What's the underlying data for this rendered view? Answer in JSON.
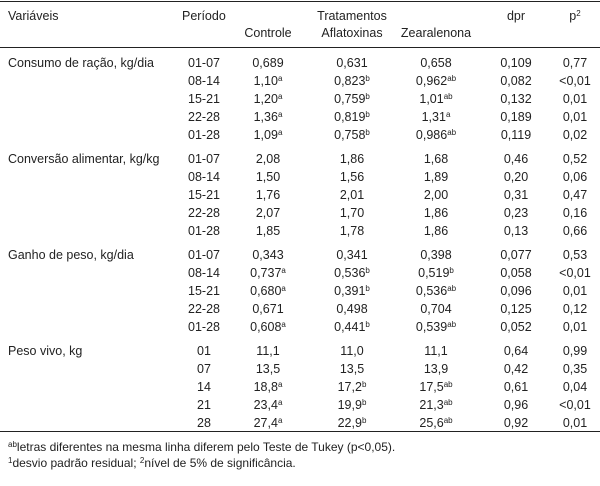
{
  "header": {
    "variaveis": "Variáveis",
    "periodo": "Período",
    "tratamentos": "Tratamentos",
    "controle": "Controle",
    "aflatoxinas": "Aflatoxinas",
    "zearalenona": "Zearalenona",
    "dpr": "dpr",
    "p": "p",
    "p_sup": "2"
  },
  "groups": [
    {
      "label": "Consumo de ração, kg/dia",
      "rows": [
        {
          "periodo": "01-07",
          "controle": "0,689",
          "controle_sup": "",
          "aflatoxinas": "0,631",
          "aflatoxinas_sup": "",
          "zearalenona": "0,658",
          "zearalenona_sup": "",
          "dpr": "0,109",
          "p": "0,77"
        },
        {
          "periodo": "08-14",
          "controle": "1,10",
          "controle_sup": "a",
          "aflatoxinas": "0,823",
          "aflatoxinas_sup": "b",
          "zearalenona": "0,962",
          "zearalenona_sup": "ab",
          "dpr": "0,082",
          "p": "<0,01"
        },
        {
          "periodo": "15-21",
          "controle": "1,20",
          "controle_sup": "a",
          "aflatoxinas": "0,759",
          "aflatoxinas_sup": "b",
          "zearalenona": "1,01",
          "zearalenona_sup": "ab",
          "dpr": "0,132",
          "p": "0,01"
        },
        {
          "periodo": "22-28",
          "controle": "1,36",
          "controle_sup": "a",
          "aflatoxinas": "0,819",
          "aflatoxinas_sup": "b",
          "zearalenona": "1,31",
          "zearalenona_sup": "a",
          "dpr": "0,189",
          "p": "0,01"
        },
        {
          "periodo": "01-28",
          "controle": "1,09",
          "controle_sup": "a",
          "aflatoxinas": "0,758",
          "aflatoxinas_sup": "b",
          "zearalenona": "0,986",
          "zearalenona_sup": "ab",
          "dpr": "0,119",
          "p": "0,02"
        }
      ]
    },
    {
      "label": "Conversão alimentar, kg/kg",
      "rows": [
        {
          "periodo": "01-07",
          "controle": "2,08",
          "controle_sup": "",
          "aflatoxinas": "1,86",
          "aflatoxinas_sup": "",
          "zearalenona": "1,68",
          "zearalenona_sup": "",
          "dpr": "0,46",
          "p": "0,52"
        },
        {
          "periodo": "08-14",
          "controle": "1,50",
          "controle_sup": "",
          "aflatoxinas": "1,56",
          "aflatoxinas_sup": "",
          "zearalenona": "1,89",
          "zearalenona_sup": "",
          "dpr": "0,20",
          "p": "0,06"
        },
        {
          "periodo": "15-21",
          "controle": "1,76",
          "controle_sup": "",
          "aflatoxinas": "2,01",
          "aflatoxinas_sup": "",
          "zearalenona": "2,00",
          "zearalenona_sup": "",
          "dpr": "0,31",
          "p": "0,47"
        },
        {
          "periodo": "22-28",
          "controle": "2,07",
          "controle_sup": "",
          "aflatoxinas": "1,70",
          "aflatoxinas_sup": "",
          "zearalenona": "1,86",
          "zearalenona_sup": "",
          "dpr": "0,23",
          "p": "0,16"
        },
        {
          "periodo": "01-28",
          "controle": "1,85",
          "controle_sup": "",
          "aflatoxinas": "1,78",
          "aflatoxinas_sup": "",
          "zearalenona": "1,86",
          "zearalenona_sup": "",
          "dpr": "0,13",
          "p": "0,66"
        }
      ]
    },
    {
      "label": "Ganho de peso, kg/dia",
      "rows": [
        {
          "periodo": "01-07",
          "controle": "0,343",
          "controle_sup": "",
          "aflatoxinas": "0,341",
          "aflatoxinas_sup": "",
          "zearalenona": "0,398",
          "zearalenona_sup": "",
          "dpr": "0,077",
          "p": "0,53"
        },
        {
          "periodo": "08-14",
          "controle": "0,737",
          "controle_sup": "a",
          "aflatoxinas": "0,536",
          "aflatoxinas_sup": "b",
          "zearalenona": "0,519",
          "zearalenona_sup": "b",
          "dpr": "0,058",
          "p": "<0,01"
        },
        {
          "periodo": "15-21",
          "controle": "0,680",
          "controle_sup": "a",
          "aflatoxinas": "0,391",
          "aflatoxinas_sup": "b",
          "zearalenona": "0,536",
          "zearalenona_sup": "ab",
          "dpr": "0,096",
          "p": "0,01"
        },
        {
          "periodo": "22-28",
          "controle": "0,671",
          "controle_sup": "",
          "aflatoxinas": "0,498",
          "aflatoxinas_sup": "",
          "zearalenona": "0,704",
          "zearalenona_sup": "",
          "dpr": "0,125",
          "p": "0,12"
        },
        {
          "periodo": "01-28",
          "controle": "0,608",
          "controle_sup": "a",
          "aflatoxinas": "0,441",
          "aflatoxinas_sup": "b",
          "zearalenona": "0,539",
          "zearalenona_sup": "ab",
          "dpr": "0,052",
          "p": "0,01"
        }
      ]
    },
    {
      "label": "Peso vivo, kg",
      "rows": [
        {
          "periodo": "01",
          "controle": "11,1",
          "controle_sup": "",
          "aflatoxinas": "11,0",
          "aflatoxinas_sup": "",
          "zearalenona": "11,1",
          "zearalenona_sup": "",
          "dpr": "0,64",
          "p": "0,99"
        },
        {
          "periodo": "07",
          "controle": "13,5",
          "controle_sup": "",
          "aflatoxinas": "13,5",
          "aflatoxinas_sup": "",
          "zearalenona": "13,9",
          "zearalenona_sup": "",
          "dpr": "0,42",
          "p": "0,35"
        },
        {
          "periodo": "14",
          "controle": "18,8",
          "controle_sup": "a",
          "aflatoxinas": "17,2",
          "aflatoxinas_sup": "b",
          "zearalenona": "17,5",
          "zearalenona_sup": "ab",
          "dpr": "0,61",
          "p": "0,04"
        },
        {
          "periodo": "21",
          "controle": "23,4",
          "controle_sup": "a",
          "aflatoxinas": "19,9",
          "aflatoxinas_sup": "b",
          "zearalenona": "21,3",
          "zearalenona_sup": "ab",
          "dpr": "0,96",
          "p": "<0,01"
        },
        {
          "periodo": "28",
          "controle": "27,4",
          "controle_sup": "a",
          "aflatoxinas": "22,9",
          "aflatoxinas_sup": "b",
          "zearalenona": "25,6",
          "zearalenona_sup": "ab",
          "dpr": "0,92",
          "p": "0,01"
        }
      ]
    }
  ],
  "notes": {
    "note1_sup": "ab",
    "note1_text": "letras diferentes na mesma linha diferem pelo Teste de Tukey (p<0,05).",
    "note2_sup1": "1",
    "note2_text1": "desvio padrão residual; ",
    "note2_sup2": "2",
    "note2_text2": "nível de 5% de significância."
  }
}
